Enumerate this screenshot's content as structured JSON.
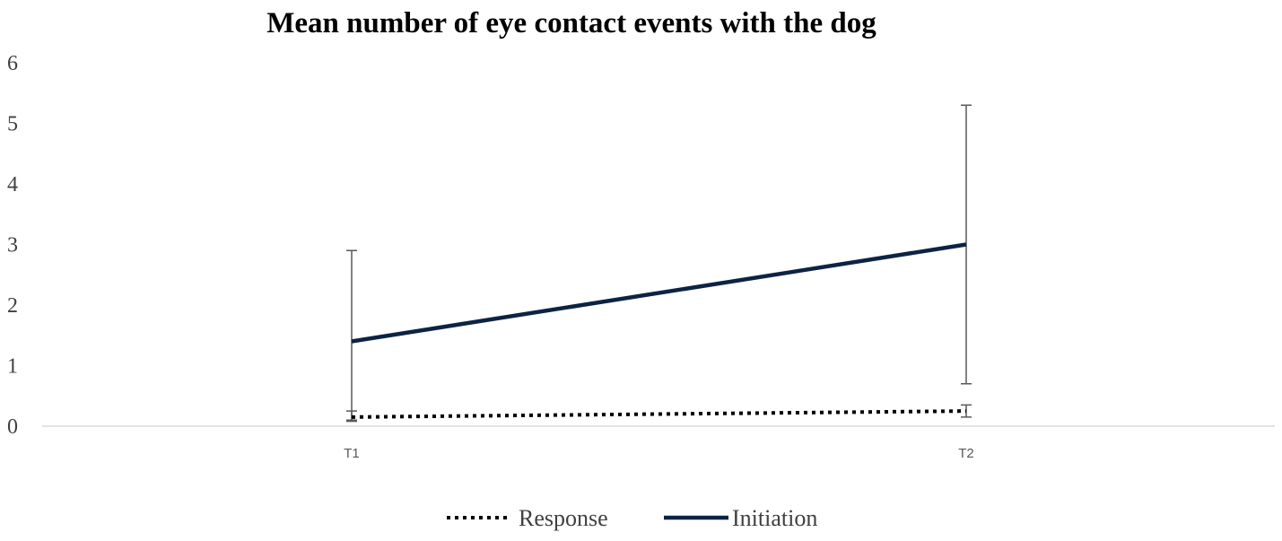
{
  "chart_data": {
    "type": "line",
    "title": "Mean number of eye contact events with the dog",
    "xlabel": "",
    "ylabel": "",
    "categories": [
      "T1",
      "T2"
    ],
    "ylim": [
      0,
      6
    ],
    "yticks": [
      "0",
      "1",
      "2",
      "3",
      "4",
      "5",
      "6"
    ],
    "grid": false,
    "legend_position": "bottom",
    "series": [
      {
        "name": "Response",
        "values": [
          0.15,
          0.25
        ],
        "error_low": [
          0.08,
          0.15
        ],
        "error_high": [
          0.25,
          0.35
        ],
        "line_style": "dotted",
        "color": "#000000"
      },
      {
        "name": "Initiation",
        "values": [
          1.4,
          3.0
        ],
        "error_low": [
          0.1,
          0.7
        ],
        "error_high": [
          2.9,
          5.3
        ],
        "line_style": "solid",
        "color": "#0d2344"
      }
    ],
    "errorbar_color": "#595959"
  }
}
